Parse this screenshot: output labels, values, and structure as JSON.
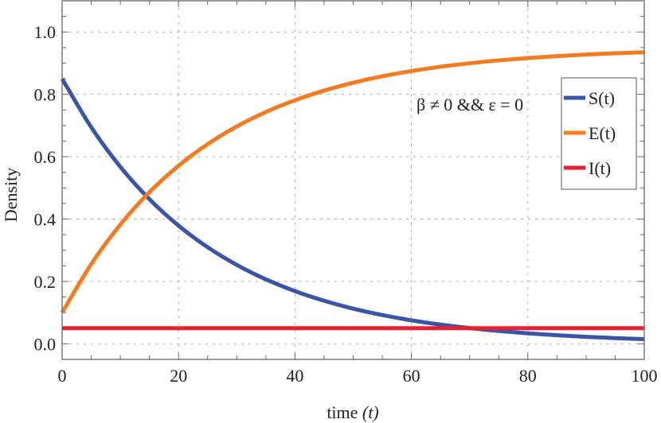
{
  "chart_data": {
    "type": "line",
    "title": "",
    "xlabel": "time",
    "xlabel_var": "(t)",
    "ylabel": "Density",
    "xlim": [
      0,
      100
    ],
    "ylim": [
      -0.05,
      1.1
    ],
    "xticks": [
      0,
      20,
      40,
      60,
      80,
      100
    ],
    "xtick_labels": [
      "0",
      "20",
      "40",
      "60",
      "80",
      "100"
    ],
    "yticks": [
      0.0,
      0.2,
      0.4,
      0.6,
      0.8,
      1.0
    ],
    "ytick_labels": [
      "0.0",
      "0.2",
      "0.4",
      "0.6",
      "0.8",
      "1.0"
    ],
    "grid": true,
    "annotation": "β ≠ 0 && ε = 0",
    "legend_position": "top-right",
    "x": [
      0,
      5,
      10,
      15,
      20,
      25,
      30,
      35,
      40,
      45,
      50,
      55,
      60,
      65,
      70,
      75,
      80,
      85,
      90,
      95,
      100
    ],
    "series": [
      {
        "name": "S(t)",
        "color": "#3a54a8",
        "values": [
          0.85,
          0.6945,
          0.5675,
          0.4637,
          0.3789,
          0.3096,
          0.253,
          0.2067,
          0.1689,
          0.138,
          0.1128,
          0.0922,
          0.0753,
          0.0615,
          0.0503,
          0.0411,
          0.0336,
          0.0274,
          0.0224,
          0.0183,
          0.015
        ]
      },
      {
        "name": "E(t)",
        "color": "#f47b20",
        "values": [
          0.1,
          0.2555,
          0.3825,
          0.4863,
          0.5711,
          0.6404,
          0.697,
          0.7433,
          0.7811,
          0.812,
          0.8372,
          0.8578,
          0.8747,
          0.8885,
          0.8997,
          0.9089,
          0.9164,
          0.9226,
          0.9276,
          0.9317,
          0.935
        ]
      },
      {
        "name": "I(t)",
        "color": "#e8202f",
        "values": [
          0.05,
          0.05,
          0.05,
          0.05,
          0.05,
          0.05,
          0.05,
          0.05,
          0.05,
          0.05,
          0.05,
          0.05,
          0.05,
          0.05,
          0.05,
          0.05,
          0.05,
          0.05,
          0.05,
          0.05,
          0.05
        ]
      }
    ]
  }
}
